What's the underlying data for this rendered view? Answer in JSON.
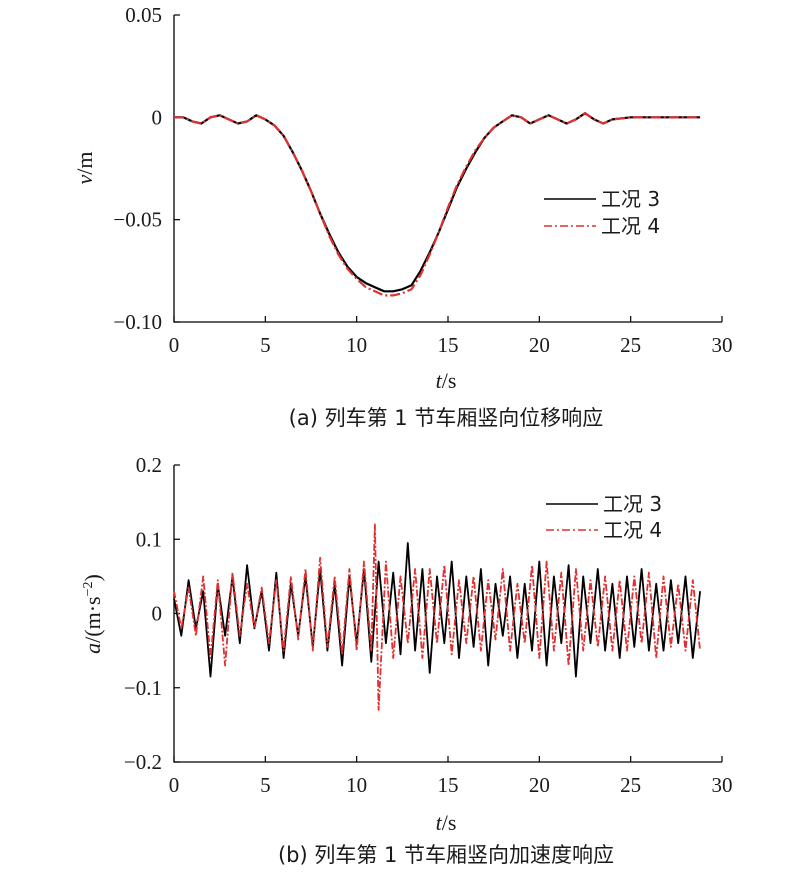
{
  "chart_data": [
    {
      "type": "line",
      "caption": "(a) 列车第 1 节车厢竖向位移响应",
      "xlabel_var": "t",
      "xlabel_unit": "/s",
      "ylabel_var": "v",
      "ylabel_unit": "/m",
      "xlim": [
        0,
        30
      ],
      "ylim": [
        -0.1,
        0.05
      ],
      "xticks": [
        0,
        5,
        10,
        15,
        20,
        25,
        30
      ],
      "xtick_labels": [
        "0",
        "5",
        "10",
        "15",
        "20",
        "25",
        "30"
      ],
      "yticks": [
        0.05,
        0,
        -0.05,
        -0.1
      ],
      "ytick_labels": [
        "0.05",
        "0",
        "−0.05",
        "−0.10"
      ],
      "grid": false,
      "legend_position": "right-middle",
      "series": [
        {
          "name": "工况 3",
          "color": "#000000",
          "style": "solid",
          "x": [
            0,
            0.5,
            1,
            1.5,
            2,
            2.5,
            3,
            3.5,
            4,
            4.5,
            5,
            5.5,
            6,
            6.5,
            7,
            7.5,
            8,
            8.5,
            9,
            9.5,
            10,
            10.5,
            11,
            11.5,
            12,
            12.5,
            13,
            13.5,
            14,
            14.5,
            15,
            15.5,
            16,
            16.5,
            17,
            17.5,
            18,
            18.5,
            19,
            19.5,
            20,
            20.5,
            21,
            21.5,
            22,
            22.5,
            23,
            23.5,
            24,
            25,
            26,
            27,
            28,
            28.8
          ],
          "y": [
            0.0,
            0.0,
            -0.002,
            -0.003,
            0.0,
            0.001,
            -0.001,
            -0.003,
            -0.002,
            0.001,
            -0.001,
            -0.004,
            -0.009,
            -0.017,
            -0.026,
            -0.036,
            -0.047,
            -0.057,
            -0.066,
            -0.073,
            -0.078,
            -0.081,
            -0.083,
            -0.085,
            -0.085,
            -0.084,
            -0.082,
            -0.075,
            -0.066,
            -0.056,
            -0.045,
            -0.034,
            -0.025,
            -0.017,
            -0.01,
            -0.005,
            -0.002,
            0.001,
            0.0,
            -0.003,
            -0.001,
            0.001,
            -0.001,
            -0.003,
            -0.001,
            0.002,
            -0.001,
            -0.003,
            -0.001,
            0.0,
            0.0,
            0.0,
            0.0,
            0.0
          ]
        },
        {
          "name": "工况 4",
          "color": "#e03030",
          "style": "dashdot",
          "x": [
            0,
            0.5,
            1,
            1.5,
            2,
            2.5,
            3,
            3.5,
            4,
            4.5,
            5,
            5.5,
            6,
            6.5,
            7,
            7.5,
            8,
            8.5,
            9,
            9.5,
            10,
            10.5,
            11,
            11.5,
            12,
            12.5,
            13,
            13.5,
            14,
            14.5,
            15,
            15.5,
            16,
            16.5,
            17,
            17.5,
            18,
            18.5,
            19,
            19.5,
            20,
            20.5,
            21,
            21.5,
            22,
            22.5,
            23,
            23.5,
            24,
            25,
            26,
            27,
            28,
            28.8
          ],
          "y": [
            0.0,
            0.0,
            -0.002,
            -0.003,
            0.0,
            0.001,
            -0.001,
            -0.003,
            -0.002,
            0.001,
            -0.001,
            -0.004,
            -0.009,
            -0.017,
            -0.026,
            -0.036,
            -0.047,
            -0.058,
            -0.067,
            -0.074,
            -0.079,
            -0.083,
            -0.085,
            -0.087,
            -0.087,
            -0.086,
            -0.084,
            -0.077,
            -0.067,
            -0.056,
            -0.044,
            -0.033,
            -0.024,
            -0.016,
            -0.01,
            -0.005,
            -0.002,
            0.001,
            0.0,
            -0.003,
            -0.001,
            0.001,
            -0.001,
            -0.003,
            -0.001,
            0.002,
            -0.001,
            -0.003,
            -0.001,
            0.0,
            0.0,
            0.0,
            0.0,
            0.0
          ]
        }
      ]
    },
    {
      "type": "line",
      "caption": "(b) 列车第 1 节车厢竖向加速度响应",
      "xlabel_var": "t",
      "xlabel_unit": "/s",
      "ylabel_var": "a",
      "ylabel_unit": "/(m·s",
      "ylabel_sup": "−2",
      "ylabel_close": ")",
      "xlim": [
        0,
        30
      ],
      "ylim": [
        -0.2,
        0.2
      ],
      "xticks": [
        0,
        5,
        10,
        15,
        20,
        25,
        30
      ],
      "xtick_labels": [
        "0",
        "5",
        "10",
        "15",
        "20",
        "25",
        "30"
      ],
      "yticks": [
        0.2,
        0.1,
        0,
        -0.1,
        -0.2
      ],
      "ytick_labels": [
        "0.2",
        "0.1",
        "0",
        "−0.1",
        "−0.2"
      ],
      "grid": false,
      "legend_position": "top-right",
      "series": [
        {
          "name": "工况 3",
          "color": "#000000",
          "style": "solid",
          "x": [
            0,
            0.4,
            0.8,
            1.2,
            1.6,
            2.0,
            2.4,
            2.8,
            3.2,
            3.6,
            4.0,
            4.4,
            4.8,
            5.2,
            5.6,
            6.0,
            6.4,
            6.8,
            7.2,
            7.6,
            8.0,
            8.4,
            8.8,
            9.2,
            9.6,
            10.0,
            10.4,
            10.8,
            11.2,
            11.6,
            12.0,
            12.4,
            12.8,
            13.2,
            13.6,
            14.0,
            14.4,
            14.8,
            15.2,
            15.6,
            16.0,
            16.4,
            16.8,
            17.2,
            17.6,
            18.0,
            18.4,
            18.8,
            19.2,
            19.6,
            20.0,
            20.4,
            20.8,
            21.2,
            21.6,
            22.0,
            22.4,
            22.8,
            23.2,
            23.6,
            24.0,
            24.4,
            24.8,
            25.2,
            25.6,
            26.0,
            26.4,
            26.8,
            27.2,
            27.6,
            28.0,
            28.4,
            28.8
          ],
          "y": [
            0.02,
            -0.03,
            0.045,
            -0.02,
            0.03,
            -0.085,
            0.04,
            -0.03,
            0.05,
            -0.04,
            0.065,
            -0.02,
            0.03,
            -0.05,
            0.055,
            -0.06,
            0.04,
            -0.03,
            0.05,
            -0.045,
            0.06,
            -0.05,
            0.04,
            -0.07,
            0.05,
            -0.04,
            0.06,
            -0.065,
            0.07,
            -0.04,
            0.055,
            -0.055,
            0.095,
            -0.05,
            0.06,
            -0.08,
            0.05,
            -0.04,
            0.07,
            -0.06,
            0.05,
            -0.045,
            0.06,
            -0.07,
            0.04,
            -0.03,
            0.05,
            -0.06,
            0.04,
            -0.05,
            0.07,
            -0.07,
            0.05,
            -0.04,
            0.065,
            -0.085,
            0.05,
            -0.04,
            0.06,
            -0.05,
            0.04,
            -0.06,
            0.05,
            -0.045,
            0.06,
            -0.05,
            0.04,
            -0.05,
            0.045,
            -0.04,
            0.05,
            -0.06,
            0.03
          ]
        },
        {
          "name": "工况 4",
          "color": "#e03030",
          "style": "dashdot",
          "x": [
            0,
            0.4,
            0.8,
            1.2,
            1.6,
            2.0,
            2.4,
            2.8,
            3.2,
            3.6,
            4.0,
            4.4,
            4.8,
            5.2,
            5.6,
            6.0,
            6.4,
            6.8,
            7.2,
            7.6,
            8.0,
            8.4,
            8.8,
            9.2,
            9.6,
            10.0,
            10.4,
            10.8,
            11.0,
            11.2,
            11.6,
            12.0,
            12.4,
            12.8,
            13.2,
            13.6,
            14.0,
            14.4,
            14.8,
            15.2,
            15.6,
            16.0,
            16.4,
            16.8,
            17.2,
            17.6,
            18.0,
            18.4,
            18.8,
            19.2,
            19.6,
            20.0,
            20.4,
            20.8,
            21.2,
            21.6,
            22.0,
            22.4,
            22.8,
            23.2,
            23.6,
            24.0,
            24.4,
            24.8,
            25.2,
            25.6,
            26.0,
            26.4,
            26.8,
            27.2,
            27.6,
            28.0,
            28.4,
            28.8
          ],
          "y": [
            0.03,
            -0.02,
            0.035,
            -0.03,
            0.05,
            -0.06,
            0.045,
            -0.07,
            0.055,
            -0.03,
            0.04,
            -0.02,
            0.035,
            -0.04,
            0.045,
            -0.05,
            0.05,
            -0.035,
            0.06,
            -0.05,
            0.075,
            -0.045,
            0.05,
            -0.055,
            0.06,
            -0.05,
            0.07,
            -0.05,
            0.12,
            -0.13,
            0.07,
            -0.06,
            0.05,
            -0.04,
            0.06,
            -0.06,
            0.06,
            -0.04,
            0.065,
            -0.055,
            0.045,
            -0.04,
            0.05,
            -0.05,
            0.045,
            -0.035,
            0.06,
            -0.05,
            0.04,
            -0.04,
            0.065,
            -0.06,
            0.07,
            -0.05,
            0.055,
            -0.07,
            0.06,
            -0.05,
            0.045,
            -0.045,
            0.05,
            -0.05,
            0.045,
            -0.05,
            0.05,
            -0.04,
            0.055,
            -0.06,
            0.05,
            -0.045,
            0.04,
            -0.05,
            0.045,
            -0.05
          ]
        }
      ]
    }
  ]
}
